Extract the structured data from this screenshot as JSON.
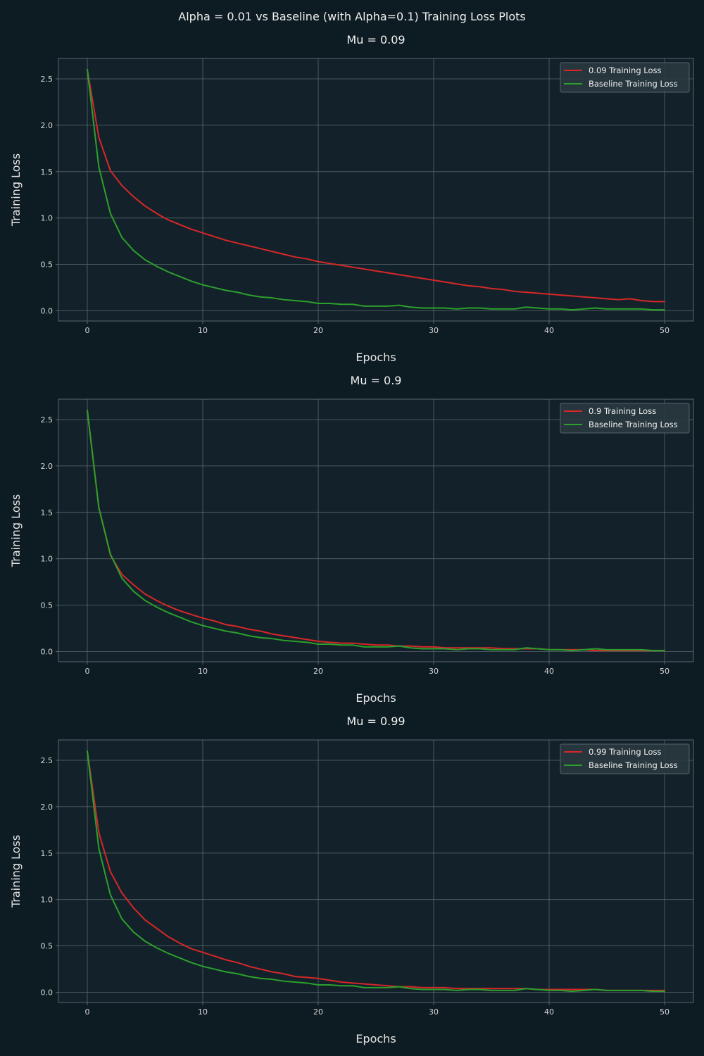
{
  "figure": {
    "suptitle": "Alpha = 0.01 vs Baseline (with Alpha=0.1) Training Loss Plots"
  },
  "colors": {
    "figure_bg": "#0d1b22",
    "axes_bg": "#13222a",
    "grid": "#5b666c",
    "spine": "#5b666c",
    "text": "#e6e6e6",
    "tick_text": "#d8d8d8",
    "legend_bg": "#2a393f",
    "legend_edge": "#56636a",
    "red": "#d62728",
    "green": "#2ca02c"
  },
  "chart_data": [
    {
      "type": "line",
      "title": "Mu = 0.09",
      "xlabel": "Epochs",
      "ylabel": "Training Loss",
      "xlim": [
        -2.5,
        52.5
      ],
      "ylim": [
        -0.11,
        2.72
      ],
      "xticks": [
        0,
        10,
        20,
        30,
        40,
        50
      ],
      "yticks": [
        0.0,
        0.5,
        1.0,
        1.5,
        2.0,
        2.5
      ],
      "grid": true,
      "legend_position": "top-right",
      "series": [
        {
          "name": "0.09 Training Loss",
          "color": "#d62728",
          "x": [
            0,
            1,
            2,
            3,
            4,
            5,
            6,
            7,
            8,
            9,
            10,
            11,
            12,
            13,
            14,
            15,
            16,
            17,
            18,
            19,
            20,
            21,
            22,
            23,
            24,
            25,
            26,
            27,
            28,
            29,
            30,
            31,
            32,
            33,
            34,
            35,
            36,
            37,
            38,
            39,
            40,
            41,
            42,
            43,
            44,
            45,
            46,
            47,
            48,
            49,
            50
          ],
          "y": [
            2.6,
            1.87,
            1.51,
            1.35,
            1.23,
            1.13,
            1.05,
            0.98,
            0.93,
            0.88,
            0.84,
            0.8,
            0.76,
            0.73,
            0.7,
            0.67,
            0.64,
            0.61,
            0.58,
            0.56,
            0.53,
            0.51,
            0.49,
            0.47,
            0.45,
            0.43,
            0.41,
            0.39,
            0.37,
            0.35,
            0.33,
            0.31,
            0.29,
            0.27,
            0.26,
            0.24,
            0.23,
            0.21,
            0.2,
            0.19,
            0.18,
            0.17,
            0.16,
            0.15,
            0.14,
            0.13,
            0.12,
            0.13,
            0.11,
            0.1,
            0.1
          ]
        },
        {
          "name": "Baseline Training Loss",
          "color": "#2ca02c",
          "x": [
            0,
            1,
            2,
            3,
            4,
            5,
            6,
            7,
            8,
            9,
            10,
            11,
            12,
            13,
            14,
            15,
            16,
            17,
            18,
            19,
            20,
            21,
            22,
            23,
            24,
            25,
            26,
            27,
            28,
            29,
            30,
            31,
            32,
            33,
            34,
            35,
            36,
            37,
            38,
            39,
            40,
            41,
            42,
            43,
            44,
            45,
            46,
            47,
            48,
            49,
            50
          ],
          "y": [
            2.6,
            1.55,
            1.05,
            0.79,
            0.65,
            0.55,
            0.48,
            0.42,
            0.37,
            0.32,
            0.28,
            0.25,
            0.22,
            0.2,
            0.17,
            0.15,
            0.14,
            0.12,
            0.11,
            0.1,
            0.08,
            0.08,
            0.07,
            0.07,
            0.05,
            0.05,
            0.05,
            0.06,
            0.04,
            0.03,
            0.03,
            0.03,
            0.02,
            0.03,
            0.03,
            0.02,
            0.02,
            0.02,
            0.04,
            0.03,
            0.02,
            0.02,
            0.01,
            0.02,
            0.03,
            0.02,
            0.02,
            0.02,
            0.02,
            0.01,
            0.01
          ]
        }
      ]
    },
    {
      "type": "line",
      "title": "Mu = 0.9",
      "xlabel": "Epochs",
      "ylabel": "Training Loss",
      "xlim": [
        -2.5,
        52.5
      ],
      "ylim": [
        -0.11,
        2.72
      ],
      "xticks": [
        0,
        10,
        20,
        30,
        40,
        50
      ],
      "yticks": [
        0.0,
        0.5,
        1.0,
        1.5,
        2.0,
        2.5
      ],
      "grid": true,
      "legend_position": "top-right",
      "series": [
        {
          "name": "0.9 Training Loss",
          "color": "#d62728",
          "x": [
            0,
            1,
            2,
            3,
            4,
            5,
            6,
            7,
            8,
            9,
            10,
            11,
            12,
            13,
            14,
            15,
            16,
            17,
            18,
            19,
            20,
            21,
            22,
            23,
            24,
            25,
            26,
            27,
            28,
            29,
            30,
            31,
            32,
            33,
            34,
            35,
            36,
            37,
            38,
            39,
            40,
            41,
            42,
            43,
            44,
            45,
            46,
            47,
            48,
            49,
            50
          ],
          "y": [
            2.6,
            1.55,
            1.04,
            0.83,
            0.72,
            0.62,
            0.55,
            0.49,
            0.44,
            0.4,
            0.36,
            0.33,
            0.29,
            0.27,
            0.24,
            0.22,
            0.19,
            0.17,
            0.15,
            0.13,
            0.11,
            0.1,
            0.09,
            0.09,
            0.08,
            0.07,
            0.07,
            0.06,
            0.06,
            0.05,
            0.05,
            0.04,
            0.04,
            0.04,
            0.04,
            0.04,
            0.03,
            0.03,
            0.03,
            0.03,
            0.02,
            0.02,
            0.02,
            0.02,
            0.01,
            0.01,
            0.01,
            0.01,
            0.01,
            0.01,
            0.01
          ]
        },
        {
          "name": "Baseline Training Loss",
          "color": "#2ca02c",
          "x": [
            0,
            1,
            2,
            3,
            4,
            5,
            6,
            7,
            8,
            9,
            10,
            11,
            12,
            13,
            14,
            15,
            16,
            17,
            18,
            19,
            20,
            21,
            22,
            23,
            24,
            25,
            26,
            27,
            28,
            29,
            30,
            31,
            32,
            33,
            34,
            35,
            36,
            37,
            38,
            39,
            40,
            41,
            42,
            43,
            44,
            45,
            46,
            47,
            48,
            49,
            50
          ],
          "y": [
            2.6,
            1.55,
            1.05,
            0.79,
            0.65,
            0.55,
            0.48,
            0.42,
            0.37,
            0.32,
            0.28,
            0.25,
            0.22,
            0.2,
            0.17,
            0.15,
            0.14,
            0.12,
            0.11,
            0.1,
            0.08,
            0.08,
            0.07,
            0.07,
            0.05,
            0.05,
            0.05,
            0.06,
            0.04,
            0.03,
            0.03,
            0.03,
            0.02,
            0.03,
            0.03,
            0.02,
            0.02,
            0.02,
            0.04,
            0.03,
            0.02,
            0.02,
            0.01,
            0.02,
            0.03,
            0.02,
            0.02,
            0.02,
            0.02,
            0.01,
            0.01
          ]
        }
      ]
    },
    {
      "type": "line",
      "title": "Mu = 0.99",
      "xlabel": "Epochs",
      "ylabel": "Training Loss",
      "xlim": [
        -2.5,
        52.5
      ],
      "ylim": [
        -0.11,
        2.72
      ],
      "xticks": [
        0,
        10,
        20,
        30,
        40,
        50
      ],
      "yticks": [
        0.0,
        0.5,
        1.0,
        1.5,
        2.0,
        2.5
      ],
      "grid": true,
      "legend_position": "top-right",
      "series": [
        {
          "name": "0.99 Training Loss",
          "color": "#d62728",
          "x": [
            0,
            1,
            2,
            3,
            4,
            5,
            6,
            7,
            8,
            9,
            10,
            11,
            12,
            13,
            14,
            15,
            16,
            17,
            18,
            19,
            20,
            21,
            22,
            23,
            24,
            25,
            26,
            27,
            28,
            29,
            30,
            31,
            32,
            33,
            34,
            35,
            36,
            37,
            38,
            39,
            40,
            41,
            42,
            43,
            44,
            45,
            46,
            47,
            48,
            49,
            50
          ],
          "y": [
            2.6,
            1.72,
            1.3,
            1.07,
            0.91,
            0.78,
            0.69,
            0.6,
            0.53,
            0.47,
            0.43,
            0.39,
            0.35,
            0.32,
            0.28,
            0.25,
            0.22,
            0.2,
            0.17,
            0.16,
            0.15,
            0.13,
            0.11,
            0.1,
            0.09,
            0.08,
            0.07,
            0.06,
            0.06,
            0.05,
            0.05,
            0.05,
            0.04,
            0.04,
            0.04,
            0.04,
            0.04,
            0.04,
            0.04,
            0.03,
            0.03,
            0.03,
            0.03,
            0.03,
            0.03,
            0.02,
            0.02,
            0.02,
            0.02,
            0.02,
            0.02
          ]
        },
        {
          "name": "Baseline Training Loss",
          "color": "#2ca02c",
          "x": [
            0,
            1,
            2,
            3,
            4,
            5,
            6,
            7,
            8,
            9,
            10,
            11,
            12,
            13,
            14,
            15,
            16,
            17,
            18,
            19,
            20,
            21,
            22,
            23,
            24,
            25,
            26,
            27,
            28,
            29,
            30,
            31,
            32,
            33,
            34,
            35,
            36,
            37,
            38,
            39,
            40,
            41,
            42,
            43,
            44,
            45,
            46,
            47,
            48,
            49,
            50
          ],
          "y": [
            2.6,
            1.55,
            1.05,
            0.79,
            0.65,
            0.55,
            0.48,
            0.42,
            0.37,
            0.32,
            0.28,
            0.25,
            0.22,
            0.2,
            0.17,
            0.15,
            0.14,
            0.12,
            0.11,
            0.1,
            0.08,
            0.08,
            0.07,
            0.07,
            0.05,
            0.05,
            0.05,
            0.06,
            0.04,
            0.03,
            0.03,
            0.03,
            0.02,
            0.03,
            0.03,
            0.02,
            0.02,
            0.02,
            0.04,
            0.03,
            0.02,
            0.02,
            0.01,
            0.02,
            0.03,
            0.02,
            0.02,
            0.02,
            0.02,
            0.01,
            0.01
          ]
        }
      ]
    }
  ]
}
